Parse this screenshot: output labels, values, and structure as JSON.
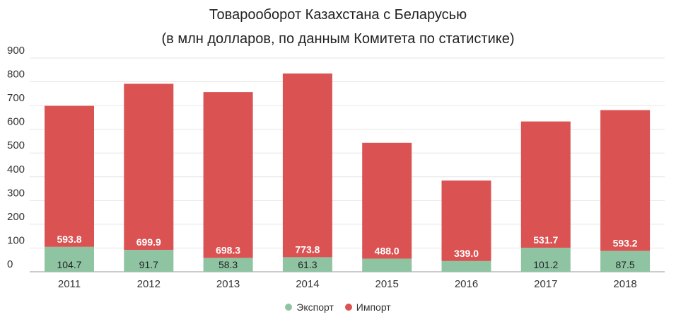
{
  "chart_data": {
    "type": "bar",
    "stacked": true,
    "title": "Товарооборот Казахстана с Беларусью",
    "subtitle": "(в млн долларов, по данным Комитета по статистике)",
    "categories": [
      "2011",
      "2012",
      "2013",
      "2014",
      "2015",
      "2016",
      "2017",
      "2018"
    ],
    "series": [
      {
        "name": "Экспорт",
        "color": "#8fc4a3",
        "values": [
          104.7,
          91.7,
          58.3,
          61.3,
          55.0,
          45.0,
          101.2,
          87.5
        ],
        "labels": [
          "104.7",
          "91.7",
          "58.3",
          "61.3",
          "",
          "",
          "101.2",
          "87.5"
        ]
      },
      {
        "name": "Импорт",
        "color": "#db5252",
        "values": [
          593.8,
          699.9,
          698.3,
          773.8,
          488.0,
          339.0,
          531.7,
          593.2
        ],
        "labels": [
          "593.8",
          "699.9",
          "698.3",
          "773.8",
          "488.0",
          "339.0",
          "531.7",
          "593.2"
        ]
      }
    ],
    "yticks": [
      "0",
      "100",
      "200",
      "300",
      "400",
      "500",
      "600",
      "700",
      "800",
      "900"
    ],
    "ylim": [
      0,
      900
    ],
    "grid": true,
    "legend_position": "bottom"
  }
}
